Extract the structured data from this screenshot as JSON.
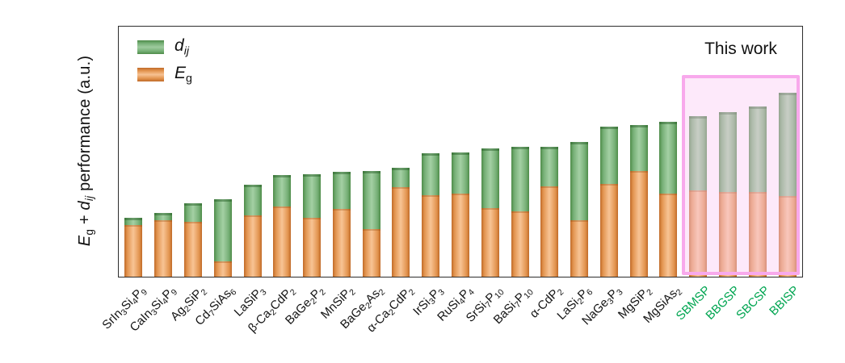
{
  "chart_data": {
    "type": "bar",
    "stacked": true,
    "title": "",
    "ylabel_text": "Eg + dij performance (a.u.)",
    "ylabel_parts": {
      "e_symbol": "E",
      "e_sub": "g",
      "plus": " + ",
      "d_symbol": "d",
      "d_sub": "ij",
      "rest": " performance (a.u.)"
    },
    "legend": [
      {
        "name": "dij",
        "symbol": "d",
        "sub": "ij",
        "color": "#77b077"
      },
      {
        "name": "Eg",
        "symbol": "E",
        "sub": "g",
        "color": "#e2944f"
      }
    ],
    "legend_position": "upper-left",
    "annotation": "This work",
    "categories": [
      "SrIn3Si4P9",
      "CaIn3Si4P9",
      "Ag2SiP2",
      "Cd7SiAs6",
      "LaSiP3",
      "β-Ca2CdP2",
      "BaGe2P2",
      "MnSiP2",
      "BaGe2As2",
      "α-Ca2CdP2",
      "IrSi3P3",
      "RuSi4P4",
      "SrSi7P10",
      "BaSi7P10",
      "α-CdP2",
      "LaSi2P6",
      "NaGe3P3",
      "MgSiP2",
      "MgSiAs2",
      "SBMSP",
      "BBGSP",
      "SBCSP",
      "BBISP"
    ],
    "highlight_labels": [
      "SBMSP",
      "BBGSP",
      "SBCSP",
      "BBISP"
    ],
    "series": [
      {
        "name": "Eg",
        "color": "#e2944f",
        "values": [
          64,
          70,
          68,
          19,
          76,
          87,
          73,
          84,
          59,
          111,
          101,
          103,
          85,
          81,
          112,
          70,
          115,
          131,
          103,
          107,
          105,
          105,
          100
        ]
      },
      {
        "name": "dij",
        "color": "#77b077",
        "values": [
          9,
          9,
          23,
          77,
          38,
          39,
          54,
          46,
          72,
          24,
          52,
          51,
          74,
          80,
          49,
          97,
          71,
          57,
          89,
          92,
          99,
          106,
          128
        ]
      }
    ],
    "units": "a.u.",
    "ylim": [
      0,
      310
    ],
    "y_ticks": "none",
    "grid": false
  },
  "colors": {
    "highlight_box_border": "#f8a9ec",
    "highlight_box_fill": "rgba(250,202,243,0.42)",
    "highlight_label_green": "#00a551",
    "axis_frame": "#2d2d2d"
  }
}
